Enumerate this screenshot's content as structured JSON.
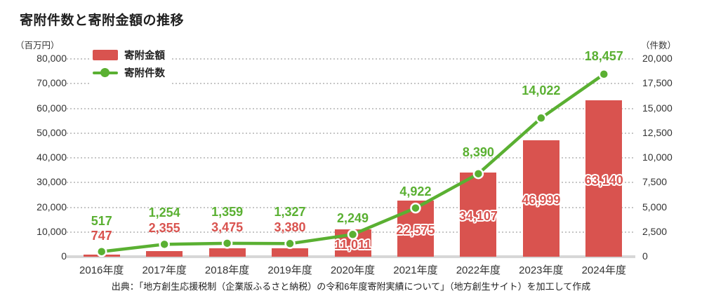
{
  "title": "寄附件数と寄附金額の推移",
  "legend": {
    "amount": "寄附金額",
    "count": "寄附件数"
  },
  "source": "出典：「地方創生応援税制（企業版ふるさと納税）の令和6年度寄附実績について」（地方創生サイト）を加工して作成",
  "colors": {
    "bar": "#D9534F",
    "line": "#5AB032",
    "grid": "#C6C6C6",
    "baseline": "#D7D7D7",
    "axis_text": "#333333",
    "title_text": "#1F1F1F"
  },
  "chart_data": {
    "type": "bar+line combo",
    "categories": [
      "2016年度",
      "2017年度",
      "2018年度",
      "2019年度",
      "2020年度",
      "2021年度",
      "2022年度",
      "2023年度",
      "2024年度"
    ],
    "series": [
      {
        "name": "寄附金額",
        "type": "bar",
        "axis": "left",
        "unit": "百万円",
        "values": [
          747,
          2355,
          3475,
          3380,
          11011,
          22575,
          34107,
          46999,
          63140
        ]
      },
      {
        "name": "寄附件数",
        "type": "line",
        "axis": "right",
        "unit": "件数",
        "values": [
          517,
          1254,
          1359,
          1327,
          2249,
          4922,
          8390,
          14022,
          18457
        ]
      }
    ],
    "left_axis": {
      "label": "（百万円）",
      "min": 0,
      "max": 80000,
      "step": 10000,
      "ticks": [
        "0",
        "10,000",
        "20,000",
        "30,000",
        "40,000",
        "50,000",
        "60,000",
        "70,000",
        "80,000"
      ]
    },
    "right_axis": {
      "label": "（件数）",
      "min": 0,
      "max": 20000,
      "step": 2500,
      "ticks": [
        "0",
        "2,500",
        "5,000",
        "7,500",
        "10,000",
        "12,500",
        "15,000",
        "17,500",
        "20,000"
      ]
    },
    "grid": "horizontal dotted",
    "legend_position": "top-left inside plot",
    "value_labels": "green above line points, red on/above bars"
  }
}
